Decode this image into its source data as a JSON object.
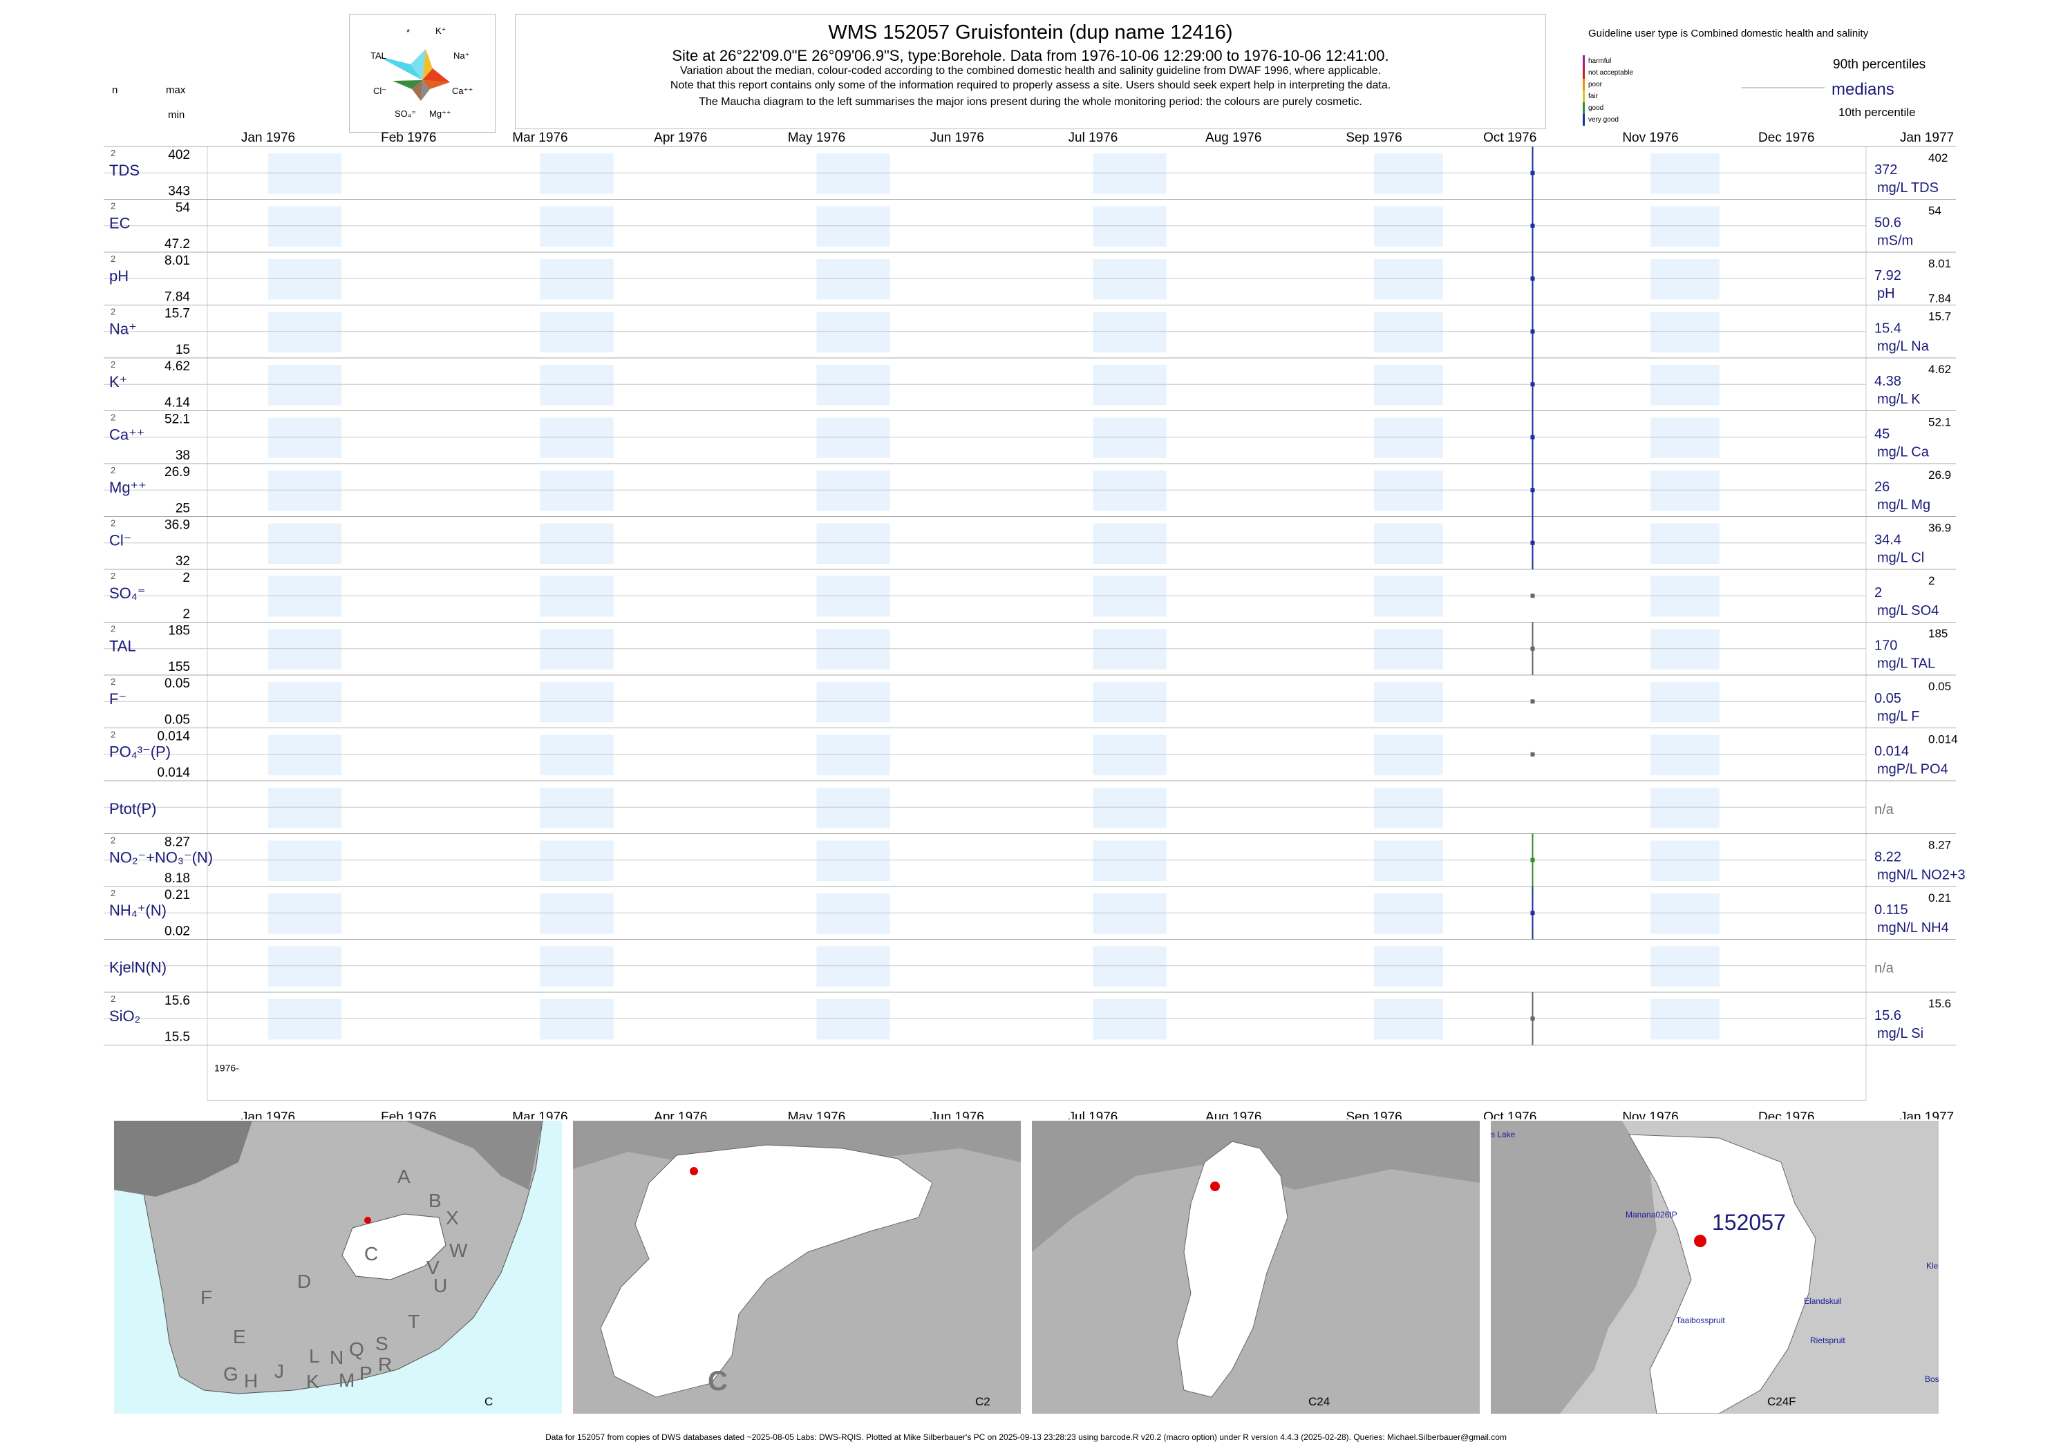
{
  "header": {
    "title": "WMS 152057  Gruisfontein (dup name 12416)",
    "site_line": "Site at 26°22'09.0\"E 26°09'06.9\"S, type:Borehole.  Data from 1976-10-06 12:29:00 to 1976-10-06 12:41:00.",
    "note1": "Variation about the median,  colour-coded according to the combined domestic health and salinity guideline from DWAF 1996, where applicable.",
    "note2": "Note that this report contains only some of the information required to properly assess a site. Users should seek expert help in interpreting the data.",
    "note3": "The Maucha diagram to the left summarises the major ions present during the whole monitoring period: the colours are purely cosmetic.",
    "col_n": "n",
    "col_max": "max",
    "col_min": "min"
  },
  "maucha": {
    "labels": [
      "*",
      "K⁺",
      "TAL",
      "Na⁺",
      "Cl⁻",
      "Ca⁺⁺",
      "SO₄⁼",
      "Mg⁺⁺"
    ]
  },
  "legend": {
    "guideline_title": "Guideline user type is Combined domestic health and salinity",
    "categories": [
      "harmful",
      "not acceptable",
      "poor",
      "fair",
      "good",
      "very good"
    ],
    "category_colors": [
      "#9b1d8a",
      "#d11a1a",
      "#f08a1a",
      "#d8c81a",
      "#2f8f2f",
      "#1c2f9e"
    ],
    "p90": "90th percentiles",
    "medians": "medians",
    "p10": "10th percentile"
  },
  "chart_data": {
    "type": "line",
    "x_range": [
      "1976-01-01",
      "1977-01-01"
    ],
    "month_labels": [
      "Jan 1976",
      "Feb 1976",
      "Mar 1976",
      "Apr 1976",
      "May 1976",
      "Jun 1976",
      "Jul 1976",
      "Aug 1976",
      "Sep 1976",
      "Oct 1976",
      "Nov 1976",
      "Dec 1976",
      "Jan 1977"
    ],
    "sample_date": "1976-10-06",
    "year_label": "1976-",
    "series": [
      {
        "name": "TDS",
        "n": "2",
        "max": "402",
        "min": "343",
        "median": "372",
        "unit": "mg/L TDS",
        "color": "#1c2f9e"
      },
      {
        "name": "EC",
        "n": "2",
        "max": "54",
        "min": "47.2",
        "median": "50.6",
        "unit": "mS/m",
        "color": "#1c2f9e"
      },
      {
        "name": "pH",
        "n": "2",
        "max": "8.01",
        "min": "7.84",
        "median": "7.92",
        "unit": "pH",
        "color": "#1c2f9e"
      },
      {
        "name": "Na⁺",
        "n": "2",
        "max": "15.7",
        "min": "15",
        "median": "15.4",
        "unit": "mg/L Na",
        "color": "#1c2f9e"
      },
      {
        "name": "K⁺",
        "n": "2",
        "max": "4.62",
        "min": "4.14",
        "median": "4.38",
        "unit": "mg/L K",
        "color": "#1c2f9e"
      },
      {
        "name": "Ca⁺⁺",
        "n": "2",
        "max": "52.1",
        "min": "38",
        "median": "45",
        "unit": "mg/L Ca",
        "color": "#1c2f9e"
      },
      {
        "name": "Mg⁺⁺",
        "n": "2",
        "max": "26.9",
        "min": "25",
        "median": "26",
        "unit": "mg/L Mg",
        "color": "#1c2f9e"
      },
      {
        "name": "Cl⁻",
        "n": "2",
        "max": "36.9",
        "min": "32",
        "median": "34.4",
        "unit": "mg/L Cl",
        "color": "#1c2f9e"
      },
      {
        "name": "SO₄⁼",
        "n": "2",
        "max": "2",
        "min": "2",
        "median": "2",
        "unit": "mg/L SO4",
        "color": "#666666"
      },
      {
        "name": "TAL",
        "n": "2",
        "max": "185",
        "min": "155",
        "median": "170",
        "unit": "mg/L TAL",
        "color": "#666666"
      },
      {
        "name": "F⁻",
        "n": "2",
        "max": "0.05",
        "min": "0.05",
        "median": "0.05",
        "unit": "mg/L F",
        "color": "#666666"
      },
      {
        "name": "PO₄³⁻(P)",
        "n": "2",
        "max": "0.014",
        "min": "0.014",
        "median": "0.014",
        "unit": "mgP/L PO4",
        "color": "#666666"
      },
      {
        "name": "Ptot(P)",
        "n": "",
        "max": "",
        "min": "",
        "median": "n/a",
        "unit": "",
        "color": "#666666"
      },
      {
        "name": "NO₂⁻+NO₃⁻(N)",
        "n": "2",
        "max": "8.27",
        "min": "8.18",
        "median": "8.22",
        "unit": "mgN/L NO2+3",
        "color": "#2f8f2f"
      },
      {
        "name": "NH₄⁺(N)",
        "n": "2",
        "max": "0.21",
        "min": "0.02",
        "median": "0.115",
        "unit": "mgN/L NH4",
        "color": "#1c2f9e"
      },
      {
        "name": "KjelN(N)",
        "n": "",
        "max": "",
        "min": "",
        "median": "n/a",
        "unit": "",
        "color": "#666666"
      },
      {
        "name": "SiO₂",
        "n": "2",
        "max": "15.6",
        "min": "15.5",
        "median": "15.6",
        "unit": "mg/L Si",
        "color": "#666666"
      }
    ]
  },
  "maps": {
    "panel_labels": [
      "C",
      "C2",
      "C24",
      "C24F"
    ],
    "region_letters": [
      "A",
      "B",
      "X",
      "W",
      "C",
      "V",
      "U",
      "D",
      "T",
      "F",
      "E",
      "G",
      "H",
      "J",
      "K",
      "L",
      "N",
      "M",
      "Q",
      "P",
      "S",
      "R"
    ],
    "big_c": "C",
    "site_label": "152057",
    "place_names": [
      "s Lake",
      "Manana026IP",
      "Taaibosspruit",
      "Elandskuil",
      "Rietspruit",
      "Kle",
      "Bos"
    ]
  },
  "footer": {
    "text": "Data for 152057 from copies of DWS databases dated ~2025-08-05 Labs: DWS-RQIS. Plotted at Mike Silberbauer's PC on 2025-09-13 23:28:23 using barcode.R v20.2 (macro option) under R version 4.4.3 (2025-02-28). Queries: Michael.Silberbauer@gmail.com"
  }
}
